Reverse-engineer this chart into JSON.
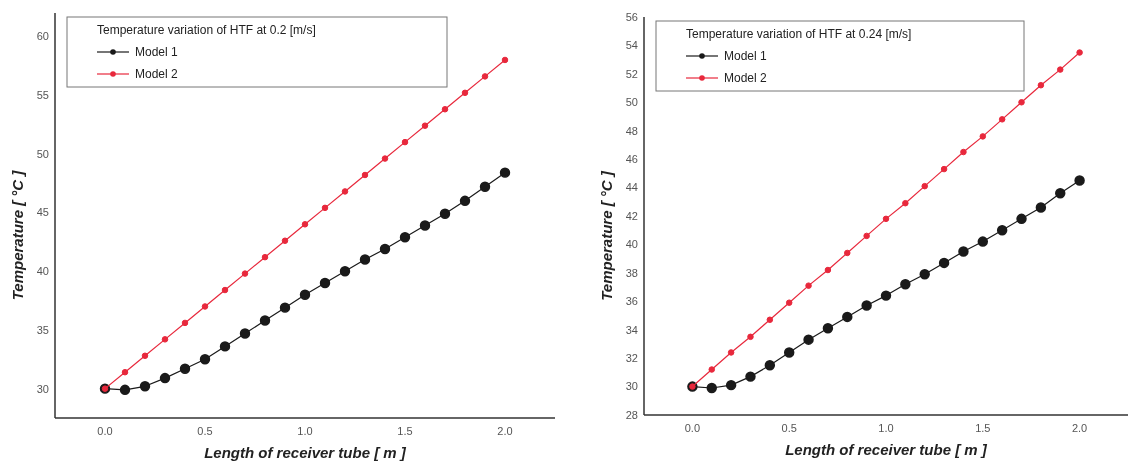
{
  "chart_data": [
    {
      "type": "line",
      "legend_title": "Temperature variation of HTF at 0.2 [m/s]",
      "xlabel": "Length of receiver tube [ m ]",
      "ylabel": "Temperature [ °C ]",
      "x": [
        0,
        0.1,
        0.2,
        0.3,
        0.4,
        0.5,
        0.6,
        0.7,
        0.8,
        0.9,
        1.0,
        1.1,
        1.2,
        1.3,
        1.4,
        1.5,
        1.6,
        1.7,
        1.8,
        1.9,
        2.0
      ],
      "xlim": [
        -0.25,
        2.25
      ],
      "xticks": [
        {
          "value": 0,
          "label": "0.0"
        },
        {
          "value": 0.5,
          "label": "0.5"
        },
        {
          "value": 1,
          "label": "1.0"
        },
        {
          "value": 1.5,
          "label": "1.5"
        },
        {
          "value": 2,
          "label": "2.0"
        }
      ],
      "ylim": [
        27.5,
        62
      ],
      "yticks": [
        30,
        35,
        40,
        45,
        50,
        55,
        60
      ],
      "legend": "top left",
      "marker": "circle",
      "line_style": "solid",
      "grid": false,
      "series": [
        {
          "name": "Model 1",
          "color": "#1a1a1a",
          "values": [
            30,
            29.9,
            30.2,
            30.9,
            31.7,
            32.5,
            33.6,
            34.7,
            35.8,
            36.9,
            38.0,
            39.0,
            40.0,
            41.0,
            41.9,
            42.9,
            43.9,
            44.9,
            46.0,
            47.2,
            48.4
          ]
        },
        {
          "name": "Model 2",
          "color": "#e8283c",
          "values": [
            30,
            31.4,
            32.8,
            34.2,
            35.6,
            37,
            38.4,
            39.8,
            41.2,
            42.6,
            44,
            45.4,
            46.8,
            48.2,
            49.6,
            51,
            52.4,
            53.8,
            55.2,
            56.6,
            58
          ]
        }
      ]
    },
    {
      "type": "line",
      "legend_title": "Temperature variation of HTF at 0.24 [m/s]",
      "xlabel": "Length of receiver tube [ m ]",
      "ylabel": "Temperature [ °C ]",
      "x": [
        0,
        0.1,
        0.2,
        0.3,
        0.4,
        0.5,
        0.6,
        0.7,
        0.8,
        0.9,
        1.0,
        1.1,
        1.2,
        1.3,
        1.4,
        1.5,
        1.6,
        1.7,
        1.8,
        1.9,
        2.0
      ],
      "xlim": [
        -0.25,
        2.25
      ],
      "xticks": [
        {
          "value": 0,
          "label": "0.0"
        },
        {
          "value": 0.5,
          "label": "0.5"
        },
        {
          "value": 1,
          "label": "1.0"
        },
        {
          "value": 1.5,
          "label": "1.5"
        },
        {
          "value": 2,
          "label": "2.0"
        }
      ],
      "ylim": [
        28,
        56
      ],
      "yticks": [
        28,
        30,
        32,
        34,
        36,
        38,
        40,
        42,
        44,
        46,
        48,
        50,
        52,
        54,
        56
      ],
      "legend": "top left",
      "marker": "circle",
      "line_style": "solid",
      "grid": false,
      "series": [
        {
          "name": "Model 1",
          "color": "#1a1a1a",
          "values": [
            30,
            29.9,
            30.1,
            30.7,
            31.5,
            32.4,
            33.3,
            34.1,
            34.9,
            35.7,
            36.4,
            37.2,
            37.9,
            38.7,
            39.5,
            40.2,
            41.0,
            41.8,
            42.6,
            43.6,
            44.5
          ]
        },
        {
          "name": "Model 2",
          "color": "#e8283c",
          "values": [
            30,
            31.2,
            32.4,
            33.5,
            34.7,
            35.9,
            37.1,
            38.2,
            39.4,
            40.6,
            41.8,
            42.9,
            44.1,
            45.3,
            46.5,
            47.6,
            48.8,
            50,
            51.2,
            52.3,
            53.5
          ]
        }
      ]
    }
  ]
}
